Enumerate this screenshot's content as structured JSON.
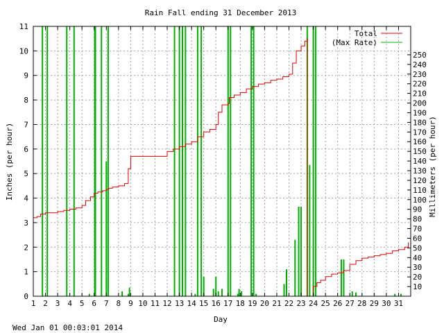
{
  "chart_data": {
    "type": "line",
    "title": "Rain Fall ending 31 December 2013",
    "xlabel": "Day",
    "ylabel_left": "Inches (per hour)",
    "ylabel_right": "Millimeters (per hour)",
    "timestamp": "Wed Jan 01 00:03:01 2014",
    "xlim": [
      1,
      32
    ],
    "ylim_left": [
      0,
      11
    ],
    "ylim_right": [
      0,
      279.4
    ],
    "grid": true,
    "legend_position": "top-right",
    "x_ticks": [
      "1",
      "2",
      "3",
      "4",
      "5",
      "6",
      "7",
      "8",
      "9",
      "10",
      "11",
      "12",
      "13",
      "14",
      "15",
      "16",
      "17",
      "18",
      "19",
      "20",
      "21",
      "22",
      "23",
      "24",
      "25",
      "26",
      "27",
      "28",
      "29",
      "30",
      "31"
    ],
    "y_ticks_left": [
      "0",
      "1",
      "2",
      "3",
      "4",
      "5",
      "6",
      "7",
      "8",
      "9",
      "10",
      "11"
    ],
    "y_ticks_right": [
      "10",
      "20",
      "30",
      "40",
      "50",
      "60",
      "70",
      "80",
      "90",
      "100",
      "110",
      "120",
      "130",
      "140",
      "150",
      "160",
      "170",
      "180",
      "190",
      "200",
      "210",
      "220",
      "230",
      "240",
      "250"
    ],
    "colors": {
      "total": "#e00000",
      "max_rate": "#00b000",
      "grid": "#a0a0a0"
    },
    "series": [
      {
        "name": "Total",
        "x": [
          1.0,
          1.3,
          1.6,
          2.0,
          2.5,
          3.0,
          3.5,
          4.0,
          4.5,
          5.0,
          5.3,
          5.7,
          6.0,
          6.3,
          6.7,
          7.0,
          7.2,
          7.5,
          8.0,
          8.5,
          8.8,
          9.0,
          9.5,
          10.0,
          11.0,
          12.0,
          12.5,
          13.0,
          13.5,
          14.0,
          14.5,
          15.0,
          15.5,
          16.0,
          16.2,
          16.5,
          17.0,
          17.1,
          17.5,
          18.0,
          18.5,
          19.0,
          19.5,
          20.0,
          20.5,
          21.0,
          21.5,
          22.0,
          22.3,
          22.6,
          23.0,
          23.3,
          23.5,
          23.52,
          24.0,
          24.3,
          24.6,
          25.0,
          25.5,
          26.0,
          26.5,
          27.0,
          27.5,
          28.0,
          28.5,
          29.0,
          29.5,
          30.0,
          30.5,
          31.0,
          31.5,
          31.8
        ],
        "values": [
          3.2,
          3.25,
          3.35,
          3.4,
          3.4,
          3.45,
          3.5,
          3.55,
          3.6,
          3.7,
          3.9,
          4.05,
          4.2,
          4.25,
          4.3,
          4.35,
          4.4,
          4.45,
          4.5,
          4.6,
          5.2,
          5.7,
          5.7,
          5.7,
          5.7,
          5.9,
          6.0,
          6.1,
          6.2,
          6.3,
          6.5,
          6.7,
          6.8,
          7.0,
          7.5,
          7.8,
          7.85,
          8.1,
          8.2,
          8.3,
          8.45,
          8.55,
          8.65,
          8.7,
          8.8,
          8.85,
          8.95,
          9.05,
          9.5,
          10.0,
          10.2,
          10.4,
          10.5,
          0.0,
          0.4,
          0.55,
          0.65,
          0.8,
          0.9,
          0.95,
          1.05,
          1.3,
          1.45,
          1.55,
          1.6,
          1.65,
          1.7,
          1.75,
          1.85,
          1.9,
          2.0,
          2.2
        ]
      },
      {
        "name": "(Max Rate)",
        "x": [
          1.75,
          2.15,
          3.75,
          4.35,
          5.6,
          6.05,
          6.1,
          6.6,
          7.0,
          7.15,
          8.3,
          8.8,
          8.9,
          12.6,
          13.0,
          13.25,
          13.5,
          14.3,
          14.5,
          14.8,
          15.0,
          15.8,
          16.0,
          16.2,
          16.5,
          17.0,
          17.2,
          17.8,
          17.9,
          18.1,
          18.9,
          19.1,
          19.3,
          21.6,
          21.8,
          22.5,
          22.8,
          23.0,
          23.5,
          23.7,
          24.0,
          24.2,
          26.3,
          26.5,
          27.2,
          27.5,
          30.7,
          31.2
        ],
        "values": [
          11,
          11,
          11,
          11,
          0.1,
          11,
          11,
          11,
          5.5,
          11,
          0.2,
          0.1,
          0.35,
          11,
          11,
          11,
          11,
          0.1,
          11,
          11,
          0.8,
          0.3,
          0.8,
          0.2,
          0.3,
          11,
          11,
          0.1,
          0.3,
          0.2,
          11,
          11,
          0.1,
          0.5,
          1.1,
          2.3,
          3.65,
          3.65,
          11,
          5.35,
          11,
          11,
          1.5,
          1.5,
          0.2,
          0.15,
          0.1,
          0.1
        ]
      }
    ]
  }
}
